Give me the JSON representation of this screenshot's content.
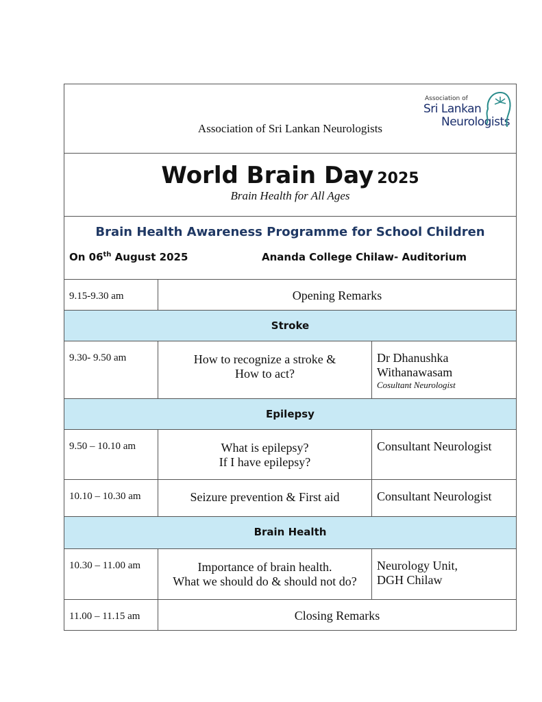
{
  "header": {
    "org_name": "Association of Sri Lankan Neurologists",
    "logo_text": [
      "Association of",
      "Sri Lankan",
      "Neurologists"
    ]
  },
  "title": {
    "main": "World Brain Day",
    "year": "2025",
    "subtitle": "Brain Health for All Ages"
  },
  "programme": {
    "name": "Brain Health Awareness Programme for School Children",
    "date_prefix": "On 06",
    "date_sup": "th",
    "date_suffix": " August 2025",
    "venue": "Ananda College Chilaw- Auditorium"
  },
  "schedule": [
    {
      "time": "9.15-9.30 am",
      "topic": "Opening Remarks"
    },
    {
      "section": "Stroke"
    },
    {
      "time": "9.30- 9.50 am",
      "topic": [
        "How to recognize a stroke &",
        "How to act?"
      ],
      "speaker": [
        "Dr Dhanushka",
        "Withanawasam"
      ],
      "speaker_title": "Cosultant Neurologist"
    },
    {
      "section": "Epilepsy"
    },
    {
      "time": "9.50 – 10.10 am",
      "topic": [
        "What is epilepsy?",
        "If I have epilepsy?"
      ],
      "speaker": [
        "Consultant Neurologist"
      ]
    },
    {
      "time": "10.10 – 10.30 am",
      "topic": [
        "Seizure prevention & First aid"
      ],
      "speaker": [
        "Consultant Neurologist"
      ]
    },
    {
      "section": "Brain Health"
    },
    {
      "time": "10.30 – 11.00 am",
      "topic": [
        "Importance of brain health.",
        "What we should do & should not do?"
      ],
      "speaker": [
        "Neurology Unit,",
        "DGH Chilaw"
      ]
    },
    {
      "time": "11.00 – 11.15 am",
      "topic": "Closing Remarks"
    }
  ],
  "colors": {
    "section_bg": "#c8e9f5",
    "programme_title": "#1f3864",
    "logo": "#2a8c8c"
  }
}
